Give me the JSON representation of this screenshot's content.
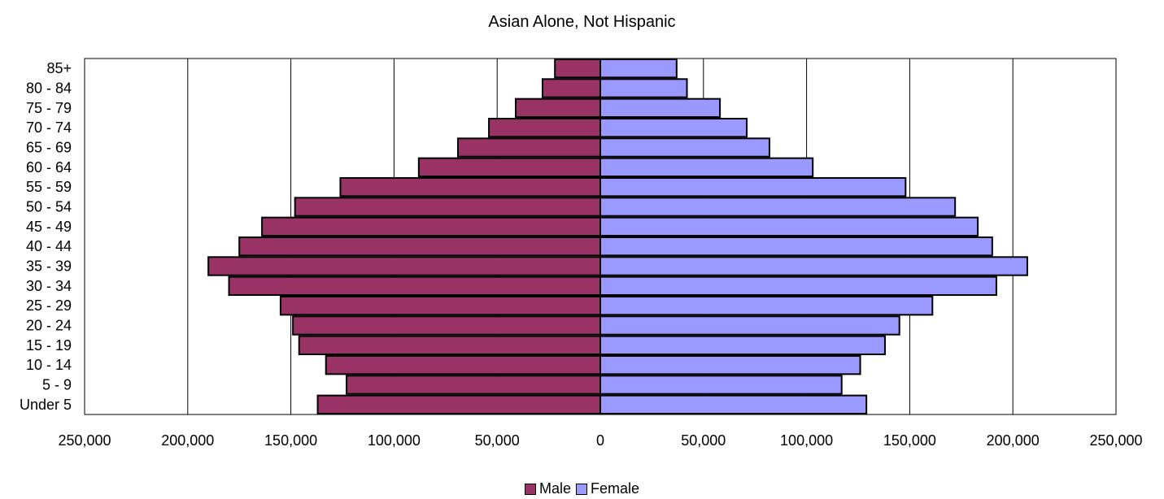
{
  "chart_data": {
    "type": "bar",
    "orientation": "horizontal",
    "title": "Asian Alone, Not Hispanic",
    "categories": [
      "85+",
      "80 - 84",
      "75 - 79",
      "70 - 74",
      "65 - 69",
      "60 - 64",
      "55 - 59",
      "50 - 54",
      "45 - 49",
      "40 - 44",
      "35 - 39",
      "30 - 34",
      "25 - 29",
      "20 - 24",
      "15 - 19",
      "10 - 14",
      "5 - 9",
      "Under 5"
    ],
    "series": [
      {
        "name": "Male",
        "color": "#993366",
        "values": [
          22000,
          28000,
          41000,
          54000,
          69000,
          88000,
          126000,
          148000,
          164000,
          175000,
          190000,
          180000,
          155000,
          149000,
          146000,
          133000,
          123000,
          137000
        ]
      },
      {
        "name": "Female",
        "color": "#9999FF",
        "values": [
          37000,
          42000,
          58000,
          71000,
          82000,
          103000,
          148000,
          172000,
          183000,
          190000,
          207000,
          192000,
          161000,
          145000,
          138000,
          126000,
          117000,
          129000
        ]
      }
    ],
    "xlim": [
      -250000,
      250000
    ],
    "xticks": [
      "250,000",
      "200,000",
      "150,000",
      "100,000",
      "50,000",
      "0",
      "50,000",
      "100,000",
      "150,000",
      "200,000",
      "250,000"
    ],
    "grid": true,
    "legend_position": "bottom"
  }
}
